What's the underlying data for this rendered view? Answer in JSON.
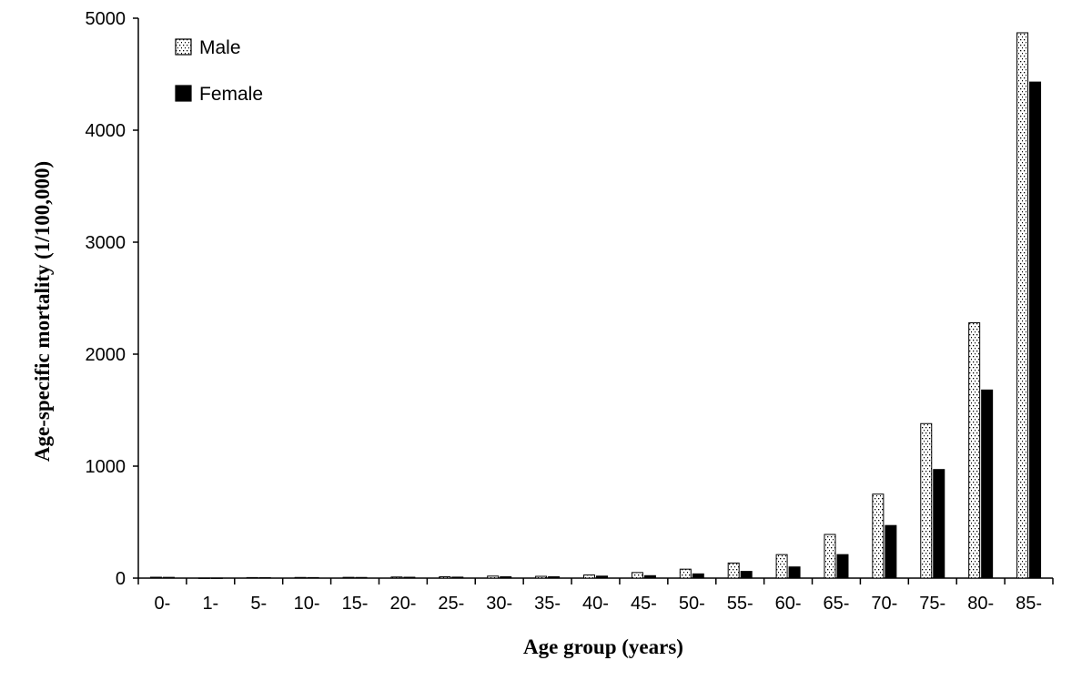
{
  "chart_data": {
    "type": "bar",
    "title": "",
    "xlabel": "Age group (years)",
    "ylabel": "Age-specific mortality (1/100,000)",
    "ylim": [
      0,
      5000
    ],
    "yticks": [
      0,
      1000,
      2000,
      3000,
      4000,
      5000
    ],
    "categories": [
      "0-",
      "1-",
      "5-",
      "10-",
      "15-",
      "20-",
      "25-",
      "30-",
      "35-",
      "40-",
      "45-",
      "50-",
      "55-",
      "60-",
      "65-",
      "70-",
      "75-",
      "80-",
      "85-"
    ],
    "series": [
      {
        "name": "Male",
        "pattern": "dotted",
        "values": [
          8,
          1,
          5,
          6,
          7,
          10,
          12,
          18,
          16,
          28,
          50,
          80,
          135,
          210,
          390,
          750,
          1380,
          2280,
          4870
        ]
      },
      {
        "name": "Female",
        "pattern": "solid",
        "values": [
          7,
          1,
          4,
          5,
          6,
          8,
          9,
          12,
          12,
          18,
          22,
          38,
          60,
          100,
          210,
          470,
          970,
          1680,
          4430
        ]
      }
    ],
    "legend": "top-left",
    "grid": false
  },
  "colors": {
    "male_fill": "#ffffff",
    "male_dots": "#000000",
    "female_fill": "#000000",
    "axis": "#000000"
  }
}
